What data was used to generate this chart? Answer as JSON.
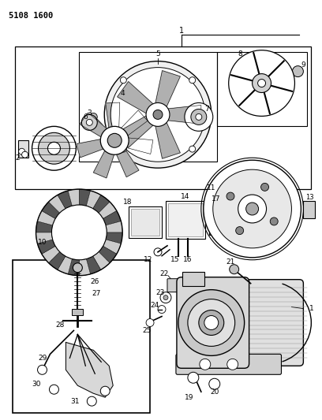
{
  "title": "5108 1600",
  "bg_color": "#ffffff",
  "fig_width": 4.08,
  "fig_height": 5.33,
  "dpi": 100
}
